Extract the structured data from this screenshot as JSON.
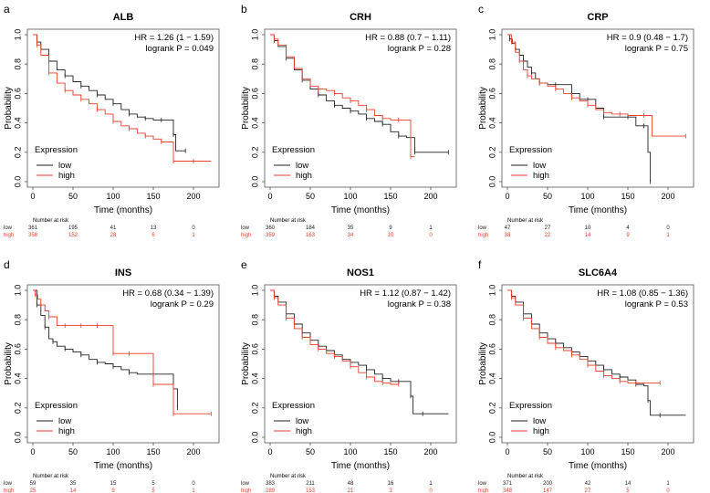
{
  "chart_data": [
    {
      "panel": "a",
      "type": "line",
      "title": "ALB",
      "hr": "HR = 1.26 (1 − 1.59)",
      "pvalue": "logrank P = 0.049",
      "xlabel": "Time (months)",
      "ylabel": "Probability",
      "xlim": [
        0,
        225
      ],
      "ylim": [
        0,
        1
      ],
      "xticks": [
        "0",
        "50",
        "100",
        "150",
        "200"
      ],
      "yticks": [
        "0.0",
        "0.2",
        "0.4",
        "0.6",
        "0.8",
        "1.0"
      ],
      "legend_title": "Expression",
      "series": [
        {
          "name": "low",
          "color": "#222222",
          "x": [
            0,
            5,
            10,
            20,
            30,
            40,
            50,
            60,
            70,
            80,
            90,
            100,
            110,
            120,
            130,
            140,
            150,
            160,
            170,
            175,
            178,
            190
          ],
          "y": [
            1.0,
            0.95,
            0.9,
            0.82,
            0.76,
            0.72,
            0.68,
            0.65,
            0.62,
            0.59,
            0.56,
            0.53,
            0.49,
            0.46,
            0.44,
            0.43,
            0.42,
            0.42,
            0.42,
            0.32,
            0.21,
            0.21
          ]
        },
        {
          "name": "high",
          "color": "#e8402a",
          "x": [
            0,
            5,
            10,
            20,
            30,
            40,
            50,
            60,
            70,
            80,
            90,
            100,
            110,
            120,
            130,
            140,
            150,
            160,
            170,
            175,
            190,
            200,
            222
          ],
          "y": [
            1.0,
            0.93,
            0.86,
            0.74,
            0.67,
            0.62,
            0.59,
            0.56,
            0.53,
            0.49,
            0.46,
            0.41,
            0.38,
            0.36,
            0.33,
            0.31,
            0.29,
            0.27,
            0.27,
            0.14,
            0.14,
            0.14,
            0.14
          ]
        }
      ],
      "risk_label": "Number at risk",
      "risk_times": [
        0,
        50,
        100,
        150,
        200
      ],
      "risk_table": [
        {
          "group": "low",
          "color": "#222222",
          "counts": [
            "361",
            "195",
            "41",
            "13",
            "0"
          ]
        },
        {
          "group": "high",
          "color": "#e8402a",
          "counts": [
            "358",
            "152",
            "28",
            "6",
            "1"
          ]
        }
      ]
    },
    {
      "panel": "b",
      "type": "line",
      "title": "CRH",
      "hr": "HR = 0.88 (0.7 − 1.11)",
      "pvalue": "logrank P = 0.28",
      "xlabel": "Time (months)",
      "ylabel": "Probability",
      "xlim": [
        0,
        225
      ],
      "ylim": [
        0,
        1
      ],
      "xticks": [
        "0",
        "50",
        "100",
        "150",
        "200"
      ],
      "yticks": [
        "0.0",
        "0.2",
        "0.4",
        "0.6",
        "0.8",
        "1.0"
      ],
      "legend_title": "Expression",
      "series": [
        {
          "name": "low",
          "color": "#222222",
          "x": [
            0,
            5,
            10,
            20,
            30,
            40,
            50,
            60,
            70,
            80,
            90,
            100,
            110,
            120,
            130,
            140,
            150,
            160,
            170,
            180,
            200,
            222
          ],
          "y": [
            1.0,
            0.96,
            0.92,
            0.84,
            0.76,
            0.69,
            0.63,
            0.59,
            0.55,
            0.52,
            0.5,
            0.48,
            0.46,
            0.43,
            0.41,
            0.39,
            0.34,
            0.31,
            0.3,
            0.2,
            0.2,
            0.2
          ]
        },
        {
          "name": "high",
          "color": "#e8402a",
          "x": [
            0,
            5,
            10,
            20,
            30,
            40,
            50,
            60,
            70,
            80,
            90,
            100,
            110,
            120,
            130,
            140,
            150,
            160,
            170,
            175,
            180
          ],
          "y": [
            1.0,
            0.97,
            0.93,
            0.85,
            0.77,
            0.7,
            0.65,
            0.63,
            0.62,
            0.6,
            0.57,
            0.55,
            0.52,
            0.49,
            0.45,
            0.43,
            0.42,
            0.42,
            0.42,
            0.17,
            0.17
          ]
        }
      ],
      "risk_label": "Number at risk",
      "risk_times": [
        0,
        50,
        100,
        150,
        200
      ],
      "risk_table": [
        {
          "group": "low",
          "color": "#222222",
          "counts": [
            "360",
            "184",
            "35",
            "9",
            "1"
          ]
        },
        {
          "group": "high",
          "color": "#e8402a",
          "counts": [
            "359",
            "163",
            "34",
            "10",
            "0"
          ]
        }
      ]
    },
    {
      "panel": "c",
      "type": "line",
      "title": "CRP",
      "hr": "HR = 0.9 (0.48 − 1.7)",
      "pvalue": "logrank P = 0.75",
      "xlabel": "Time (months)",
      "ylabel": "Probability",
      "xlim": [
        0,
        225
      ],
      "ylim": [
        0,
        1
      ],
      "xticks": [
        "0",
        "50",
        "100",
        "150",
        "200"
      ],
      "yticks": [
        "0.0",
        "0.2",
        "0.4",
        "0.6",
        "0.8",
        "1.0"
      ],
      "legend_title": "Expression",
      "series": [
        {
          "name": "low",
          "color": "#222222",
          "x": [
            0,
            3,
            6,
            10,
            15,
            20,
            25,
            30,
            35,
            40,
            50,
            60,
            70,
            80,
            90,
            100,
            110,
            120,
            130,
            150,
            160,
            170,
            175,
            178
          ],
          "y": [
            1.0,
            0.97,
            0.94,
            0.9,
            0.86,
            0.82,
            0.78,
            0.74,
            0.7,
            0.67,
            0.66,
            0.66,
            0.66,
            0.6,
            0.56,
            0.56,
            0.5,
            0.44,
            0.44,
            0.44,
            0.38,
            0.38,
            0.2,
            0.0
          ]
        },
        {
          "name": "high",
          "color": "#e8402a",
          "x": [
            0,
            5,
            10,
            15,
            20,
            25,
            30,
            40,
            50,
            60,
            70,
            80,
            90,
            100,
            110,
            120,
            130,
            140,
            150,
            170,
            180,
            222
          ],
          "y": [
            1.0,
            0.95,
            0.88,
            0.82,
            0.76,
            0.72,
            0.7,
            0.67,
            0.65,
            0.63,
            0.6,
            0.57,
            0.55,
            0.52,
            0.49,
            0.47,
            0.46,
            0.46,
            0.45,
            0.45,
            0.31,
            0.31
          ]
        }
      ],
      "risk_label": "Number at risk",
      "risk_times": [
        0,
        50,
        100,
        150,
        200
      ],
      "risk_table": [
        {
          "group": "low",
          "color": "#222222",
          "counts": [
            "47",
            "27",
            "10",
            "4",
            "0"
          ]
        },
        {
          "group": "high",
          "color": "#e8402a",
          "counts": [
            "38",
            "22",
            "14",
            "9",
            "1"
          ]
        }
      ]
    },
    {
      "panel": "d",
      "type": "line",
      "title": "INS",
      "hr": "HR = 0.68 (0.34 − 1.39)",
      "pvalue": "logrank P = 0.29",
      "xlabel": "Time (months)",
      "ylabel": "Probability",
      "xlim": [
        0,
        225
      ],
      "ylim": [
        0,
        1
      ],
      "xticks": [
        "0",
        "50",
        "100",
        "150",
        "200"
      ],
      "yticks": [
        "0.0",
        "0.2",
        "0.4",
        "0.6",
        "0.8",
        "1.0"
      ],
      "legend_title": "Expression",
      "series": [
        {
          "name": "low",
          "color": "#222222",
          "x": [
            0,
            5,
            10,
            15,
            20,
            25,
            30,
            40,
            50,
            60,
            70,
            80,
            90,
            100,
            110,
            120,
            130,
            150,
            175,
            180
          ],
          "y": [
            1.0,
            0.9,
            0.83,
            0.75,
            0.67,
            0.65,
            0.62,
            0.6,
            0.58,
            0.56,
            0.53,
            0.51,
            0.5,
            0.48,
            0.46,
            0.44,
            0.43,
            0.43,
            0.33,
            0.2
          ]
        },
        {
          "name": "high",
          "color": "#e8402a",
          "x": [
            0,
            3,
            6,
            10,
            15,
            20,
            30,
            40,
            50,
            60,
            70,
            80,
            90,
            100,
            110,
            120,
            130,
            150,
            160,
            175,
            180,
            222
          ],
          "y": [
            1.0,
            0.97,
            0.94,
            0.9,
            0.86,
            0.82,
            0.76,
            0.76,
            0.76,
            0.76,
            0.76,
            0.76,
            0.76,
            0.57,
            0.57,
            0.57,
            0.57,
            0.36,
            0.36,
            0.16,
            0.16,
            0.16
          ]
        }
      ],
      "risk_label": "Number at risk",
      "risk_times": [
        0,
        50,
        100,
        150,
        200
      ],
      "risk_table": [
        {
          "group": "low",
          "color": "#222222",
          "counts": [
            "59",
            "35",
            "15",
            "5",
            "0"
          ]
        },
        {
          "group": "high",
          "color": "#e8402a",
          "counts": [
            "25",
            "14",
            "9",
            "5",
            "1"
          ]
        }
      ]
    },
    {
      "panel": "e",
      "type": "line",
      "title": "NOS1",
      "hr": "HR = 1.12 (0.87 − 1.42)",
      "pvalue": "logrank P = 0.38",
      "xlabel": "Time (months)",
      "ylabel": "Probability",
      "xlim": [
        0,
        225
      ],
      "ylim": [
        0,
        1
      ],
      "xticks": [
        "0",
        "50",
        "100",
        "150",
        "200"
      ],
      "yticks": [
        "0.0",
        "0.2",
        "0.4",
        "0.6",
        "0.8",
        "1.0"
      ],
      "legend_title": "Expression",
      "series": [
        {
          "name": "low",
          "color": "#222222",
          "x": [
            0,
            5,
            10,
            20,
            30,
            40,
            50,
            60,
            70,
            80,
            90,
            100,
            110,
            120,
            130,
            140,
            150,
            160,
            170,
            175,
            178,
            190,
            222
          ],
          "y": [
            1.0,
            0.96,
            0.92,
            0.84,
            0.77,
            0.71,
            0.66,
            0.62,
            0.59,
            0.56,
            0.53,
            0.51,
            0.49,
            0.46,
            0.43,
            0.4,
            0.38,
            0.38,
            0.38,
            0.28,
            0.16,
            0.16,
            0.16
          ]
        },
        {
          "name": "high",
          "color": "#e8402a",
          "x": [
            0,
            5,
            10,
            20,
            30,
            40,
            50,
            60,
            70,
            80,
            90,
            100,
            110,
            120,
            130,
            140,
            150,
            160
          ],
          "y": [
            1.0,
            0.95,
            0.9,
            0.81,
            0.74,
            0.68,
            0.63,
            0.6,
            0.57,
            0.55,
            0.52,
            0.48,
            0.44,
            0.41,
            0.38,
            0.37,
            0.36,
            0.36
          ]
        }
      ],
      "risk_label": "Number at risk",
      "risk_times": [
        0,
        50,
        100,
        150,
        200
      ],
      "risk_table": [
        {
          "group": "low",
          "color": "#222222",
          "counts": [
            "383",
            "211",
            "48",
            "16",
            "1"
          ]
        },
        {
          "group": "high",
          "color": "#e8402a",
          "counts": [
            "289",
            "153",
            "21",
            "3",
            "0"
          ]
        }
      ]
    },
    {
      "panel": "f",
      "type": "line",
      "title": "SLC6A4",
      "hr": "HR = 1.08 (0.85 − 1.36)",
      "pvalue": "logrank P = 0.53",
      "xlabel": "Time (months)",
      "ylabel": "Probability",
      "xlim": [
        0,
        225
      ],
      "ylim": [
        0,
        1
      ],
      "xticks": [
        "0",
        "50",
        "100",
        "150",
        "200"
      ],
      "yticks": [
        "0.0",
        "0.2",
        "0.4",
        "0.6",
        "0.8",
        "1.0"
      ],
      "legend_title": "Expression",
      "series": [
        {
          "name": "low",
          "color": "#222222",
          "x": [
            0,
            5,
            10,
            20,
            30,
            40,
            50,
            60,
            70,
            80,
            90,
            100,
            110,
            120,
            130,
            140,
            150,
            160,
            170,
            175,
            178,
            190,
            222
          ],
          "y": [
            1.0,
            0.96,
            0.92,
            0.84,
            0.77,
            0.71,
            0.67,
            0.64,
            0.61,
            0.58,
            0.55,
            0.52,
            0.49,
            0.46,
            0.43,
            0.41,
            0.39,
            0.36,
            0.35,
            0.25,
            0.15,
            0.15,
            0.15
          ]
        },
        {
          "name": "high",
          "color": "#e8402a",
          "x": [
            0,
            5,
            10,
            20,
            30,
            40,
            50,
            60,
            70,
            80,
            90,
            100,
            110,
            120,
            130,
            140,
            150,
            160,
            175,
            190
          ],
          "y": [
            1.0,
            0.95,
            0.9,
            0.81,
            0.74,
            0.68,
            0.64,
            0.61,
            0.59,
            0.56,
            0.53,
            0.49,
            0.45,
            0.42,
            0.4,
            0.38,
            0.37,
            0.37,
            0.37,
            0.37
          ]
        }
      ],
      "risk_label": "Number at risk",
      "risk_times": [
        0,
        50,
        100,
        150,
        200
      ],
      "risk_table": [
        {
          "group": "low",
          "color": "#222222",
          "counts": [
            "371",
            "200",
            "42",
            "14",
            "1"
          ]
        },
        {
          "group": "high",
          "color": "#e8402a",
          "counts": [
            "348",
            "147",
            "27",
            "5",
            "0"
          ]
        }
      ]
    }
  ]
}
